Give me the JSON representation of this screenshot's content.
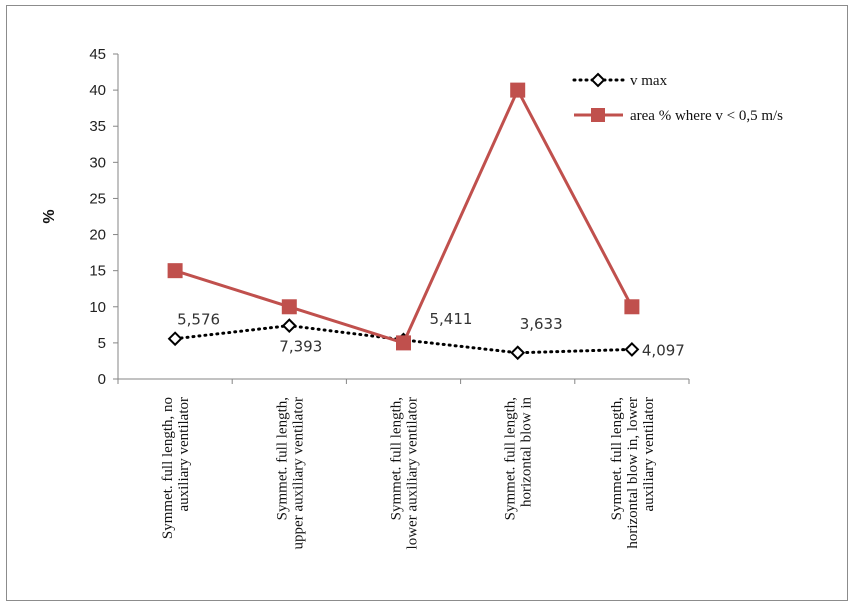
{
  "chart_data": {
    "type": "line",
    "ylabel": "%",
    "ylim": [
      0,
      45
    ],
    "yticks": [
      0,
      5,
      10,
      15,
      20,
      25,
      30,
      35,
      40,
      45
    ],
    "grid": false,
    "legend_position": "top-right",
    "categories": [
      [
        "Symmet. full length, no",
        "auxiliary ventilator"
      ],
      [
        "Symmet. full length,",
        "upper auxiliary ventilator"
      ],
      [
        "Symmet. full length,",
        "lower auxiliary ventilator"
      ],
      [
        "Symmet. full length,",
        "horizontal blow in"
      ],
      [
        "Symmet. full length,",
        "horizontal blow in, lower",
        "auxiliary ventilator"
      ]
    ],
    "series": [
      {
        "name": "v max",
        "values": [
          5.576,
          7.393,
          5.411,
          3.633,
          4.097
        ],
        "data_labels": [
          "5,576",
          "7,393",
          "5,411",
          "3,633",
          "4,097"
        ],
        "color": "#000000",
        "style": "dotted",
        "marker": "diamond"
      },
      {
        "name": "area % where v < 0,5 m/s",
        "values": [
          15,
          10,
          5,
          40,
          10
        ],
        "color": "#c0504d",
        "style": "solid",
        "marker": "square"
      }
    ]
  }
}
